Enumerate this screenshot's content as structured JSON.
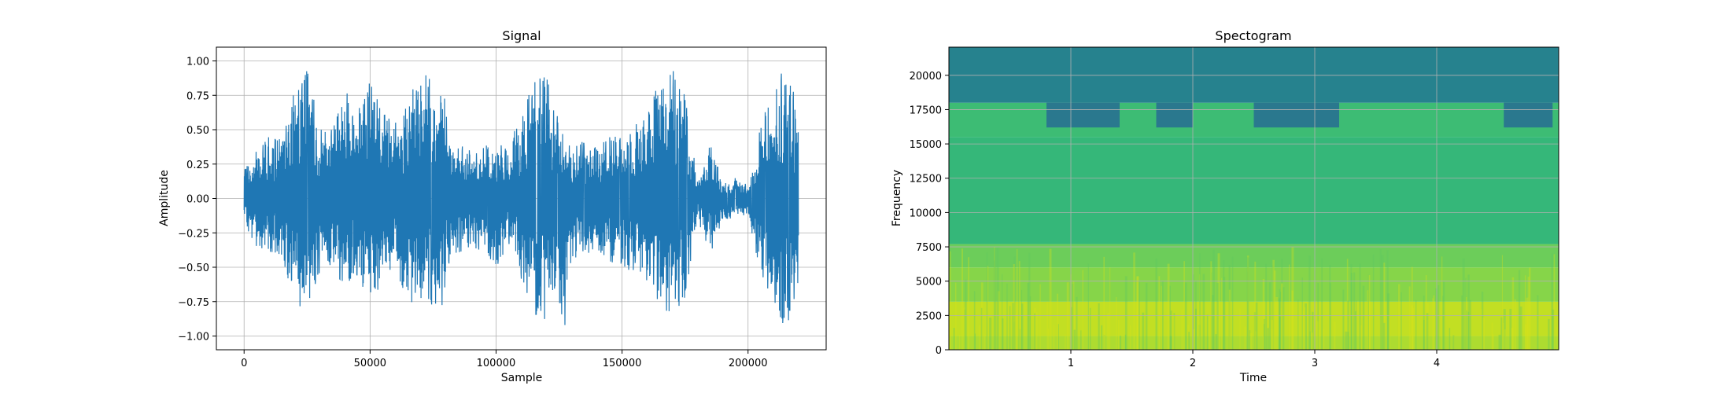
{
  "chart_data": [
    {
      "type": "line",
      "title": "Signal",
      "xlabel": "Sample",
      "ylabel": "Amplitude",
      "xlim": [
        -11000,
        231000
      ],
      "ylim": [
        -1.1,
        1.1
      ],
      "xticks": [
        0,
        50000,
        100000,
        150000,
        200000
      ],
      "xtick_labels": [
        "0",
        "50000",
        "100000",
        "150000",
        "200000"
      ],
      "yticks": [
        -1.0,
        -0.75,
        -0.5,
        -0.25,
        0.0,
        0.25,
        0.5,
        0.75,
        1.0
      ],
      "ytick_labels": [
        "−1.00",
        "−0.75",
        "−0.50",
        "−0.25",
        "0.00",
        "0.25",
        "0.50",
        "0.75",
        "1.00"
      ],
      "grid": true,
      "series_color": "#1f77b4",
      "envelope": {
        "x": [
          0,
          5000,
          10000,
          15000,
          20000,
          25000,
          30000,
          35000,
          40000,
          45000,
          50000,
          55000,
          60000,
          65000,
          70000,
          75000,
          78000,
          82000,
          90000,
          100000,
          105000,
          110000,
          115000,
          120000,
          125000,
          127000,
          130000,
          140000,
          150000,
          160000,
          165000,
          170000,
          175000,
          180000,
          185000,
          190000,
          195000,
          200000,
          205000,
          210000,
          215000,
          220000
        ],
        "upper": [
          0.2,
          0.38,
          0.45,
          0.5,
          0.85,
          0.97,
          0.55,
          0.5,
          0.8,
          0.62,
          0.88,
          0.65,
          0.55,
          0.75,
          0.95,
          0.85,
          1.0,
          0.45,
          0.35,
          0.42,
          0.35,
          0.65,
          0.88,
          0.9,
          0.55,
          0.5,
          0.42,
          0.4,
          0.5,
          0.6,
          0.88,
          0.95,
          0.75,
          0.12,
          0.4,
          0.12,
          0.15,
          0.1,
          0.55,
          0.8,
          0.97,
          0.65
        ],
        "lower": [
          -0.2,
          -0.35,
          -0.4,
          -0.45,
          -0.75,
          -0.9,
          -0.55,
          -0.5,
          -0.65,
          -0.6,
          -0.78,
          -0.6,
          -0.58,
          -0.72,
          -0.83,
          -0.85,
          -0.88,
          -0.45,
          -0.35,
          -0.5,
          -0.35,
          -0.6,
          -0.85,
          -0.95,
          -0.75,
          -1.0,
          -0.45,
          -0.42,
          -0.5,
          -0.6,
          -0.8,
          -0.88,
          -0.75,
          -0.15,
          -0.45,
          -0.15,
          -0.15,
          -0.12,
          -0.55,
          -0.85,
          -0.98,
          -0.6
        ]
      }
    },
    {
      "type": "heatmap",
      "title": "Spectogram",
      "xlabel": "Time",
      "ylabel": "Frequency",
      "xlim": [
        0,
        5
      ],
      "ylim": [
        0,
        22050
      ],
      "xticks": [
        1,
        2,
        3,
        4
      ],
      "xtick_labels": [
        "1",
        "2",
        "3",
        "4"
      ],
      "yticks": [
        0,
        2500,
        5000,
        7500,
        10000,
        12500,
        15000,
        17500,
        20000
      ],
      "ytick_labels": [
        "0",
        "2500",
        "5000",
        "7500",
        "10000",
        "12500",
        "15000",
        "17500",
        "20000"
      ],
      "grid": true,
      "colormap": "viridis",
      "bands": [
        {
          "from": 0,
          "to": 1000,
          "color": "#addc30"
        },
        {
          "from": 1000,
          "to": 3500,
          "color": "#c2df23"
        },
        {
          "from": 3500,
          "to": 6000,
          "color": "#86d549"
        },
        {
          "from": 6000,
          "to": 7700,
          "color": "#6ccd5a"
        },
        {
          "from": 7700,
          "to": 15500,
          "color": "#35b779"
        },
        {
          "from": 15500,
          "to": 18000,
          "color": "#3dbc74"
        },
        {
          "from": 18000,
          "to": 22050,
          "color": "#26828e"
        }
      ],
      "dark_patches": [
        [
          0.8,
          1.4
        ],
        [
          1.7,
          2.0
        ],
        [
          2.5,
          3.2
        ],
        [
          4.55,
          4.95
        ]
      ]
    }
  ]
}
